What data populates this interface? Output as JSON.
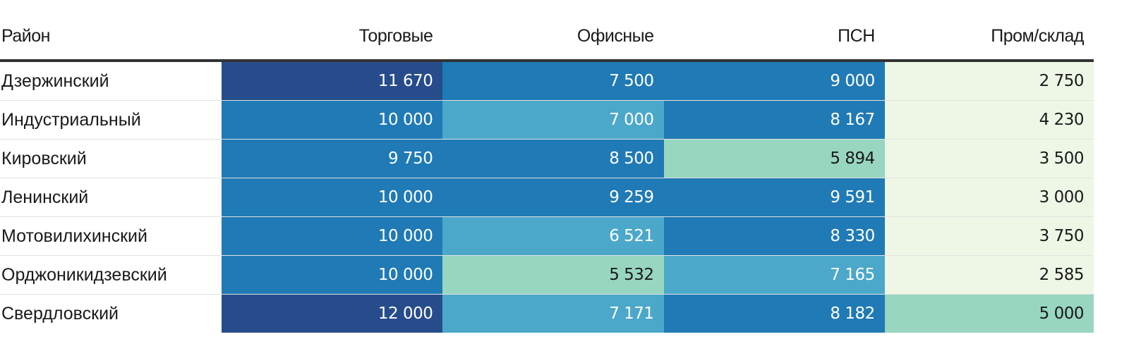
{
  "chart_data": {
    "type": "heatmap",
    "columns": [
      "Район",
      "Торговые",
      "Офисные",
      "ПСН",
      "Пром/склад"
    ],
    "rows": [
      {
        "district": "Дзержинский",
        "values": [
          11670,
          7500,
          9000,
          2750
        ],
        "labels": [
          "11 670",
          "7 500",
          "9 000",
          "2 750"
        ]
      },
      {
        "district": "Индустриальный",
        "values": [
          10000,
          7000,
          8167,
          4230
        ],
        "labels": [
          "10 000",
          "7 000",
          "8 167",
          "4 230"
        ]
      },
      {
        "district": "Кировский",
        "values": [
          9750,
          8500,
          5894,
          3500
        ],
        "labels": [
          "9 750",
          "8 500",
          "5 894",
          "3 500"
        ]
      },
      {
        "district": "Ленинский",
        "values": [
          10000,
          9259,
          9591,
          3000
        ],
        "labels": [
          "10 000",
          "9 259",
          "9 591",
          "3 000"
        ]
      },
      {
        "district": "Мотовилихинский",
        "values": [
          10000,
          6521,
          8330,
          3750
        ],
        "labels": [
          "10 000",
          "6 521",
          "8 330",
          "3 750"
        ]
      },
      {
        "district": "Орджоникидзевский",
        "values": [
          10000,
          5532,
          7165,
          2585
        ],
        "labels": [
          "10 000",
          "5 532",
          "7 165",
          "2 585"
        ]
      },
      {
        "district": "Свердловский",
        "values": [
          12000,
          7171,
          8182,
          5000
        ],
        "labels": [
          "12 000",
          "7 171",
          "8 182",
          "5 000"
        ]
      }
    ],
    "color_scale": [
      {
        "min": 0,
        "color": "#eef7e6"
      },
      {
        "min": 5000,
        "color": "#98d6c0"
      },
      {
        "min": 6000,
        "color": "#4ba8ca"
      },
      {
        "min": 7500,
        "color": "#1f7ab6"
      },
      {
        "min": 11000,
        "color": "#264c8c"
      }
    ]
  }
}
